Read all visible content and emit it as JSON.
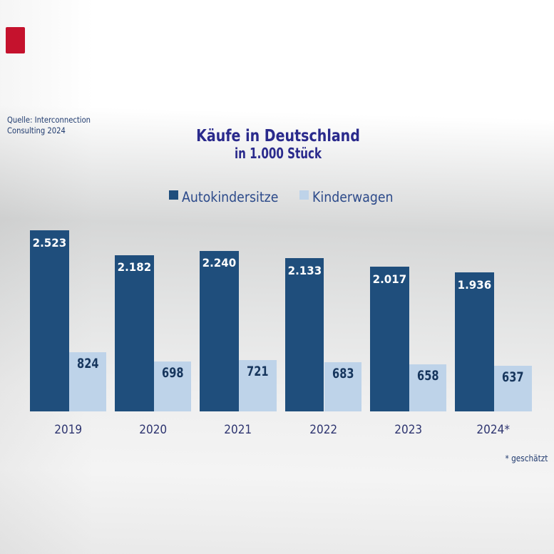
{
  "colors": {
    "title": "#2a2a8c",
    "legend_text": "#2c4a8a",
    "source_text": "#1f3a6e",
    "year_text": "#2e3570",
    "footnote_text": "#203a6e",
    "dark_bar": "#1f4e7c",
    "light_bar": "#bed3e9",
    "dark_bar_label": "#ffffff",
    "light_bar_label": "#17365d",
    "logo_red": "#c5122d"
  },
  "source_note": "Quelle: Interconnection Consulting 2024",
  "source_note_line1": "Quelle: Interconnection",
  "source_note_line2": "Consulting 2024",
  "title": "Käufe in Deutschland",
  "subtitle": "in 1.000 Stück",
  "footnote": "* geschätzt",
  "chart_data": {
    "type": "bar",
    "title": "Käufe in Deutschland",
    "subtitle": "in 1.000 Stück",
    "categories": [
      "2019",
      "2020",
      "2021",
      "2022",
      "2023",
      "2024*"
    ],
    "series": [
      {
        "name": "Autokindersitze",
        "values": [
          2523,
          2182,
          2240,
          2133,
          2017,
          1936
        ],
        "labels": [
          "2.523",
          "2.182",
          "2.240",
          "2.133",
          "2.017",
          "1.936"
        ]
      },
      {
        "name": "Kinderwagen",
        "values": [
          824,
          698,
          721,
          683,
          658,
          637
        ],
        "labels": [
          "824",
          "698",
          "721",
          "683",
          "658",
          "637"
        ]
      }
    ],
    "ylim": [
      0,
      2550
    ],
    "legend_position": "top-center",
    "grid": false,
    "footnote": "* geschätzt"
  }
}
